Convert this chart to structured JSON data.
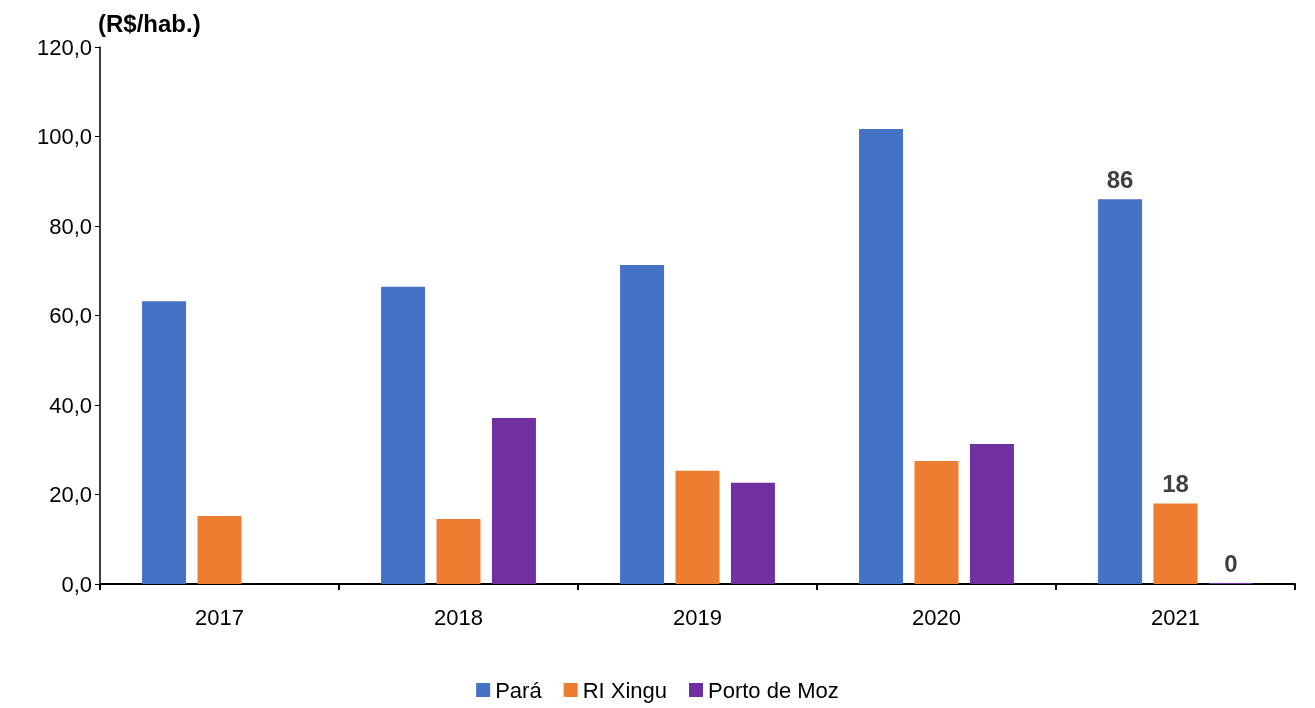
{
  "chart_data": {
    "type": "bar",
    "ylabel": "(R$/hab.)",
    "categories": [
      "2017",
      "2018",
      "2019",
      "2020",
      "2021"
    ],
    "series": [
      {
        "name": "Pará",
        "color": "#4472c4",
        "values": [
          63.2,
          66.4,
          71.3,
          101.7,
          86
        ],
        "value_labels": [
          null,
          null,
          null,
          null,
          "86"
        ]
      },
      {
        "name": "RI Xingu",
        "color": "#ed7d31",
        "values": [
          15.2,
          14.5,
          25.3,
          27.5,
          18
        ],
        "value_labels": [
          null,
          null,
          null,
          null,
          "18"
        ]
      },
      {
        "name": "Porto de Moz",
        "color": "#7030a0",
        "values": [
          null,
          37.1,
          22.6,
          31.3,
          0
        ],
        "value_labels": [
          null,
          null,
          null,
          null,
          "0"
        ]
      }
    ],
    "ylim": [
      0,
      120
    ],
    "yticks": [
      {
        "value": 0,
        "label": "0,0"
      },
      {
        "value": 20,
        "label": "20,0"
      },
      {
        "value": 40,
        "label": "40,0"
      },
      {
        "value": 60,
        "label": "60,0"
      },
      {
        "value": 80,
        "label": "80,0"
      },
      {
        "value": 100,
        "label": "100,0"
      },
      {
        "value": 120,
        "label": "120,0"
      }
    ],
    "grid": false,
    "legend": "bottom"
  }
}
